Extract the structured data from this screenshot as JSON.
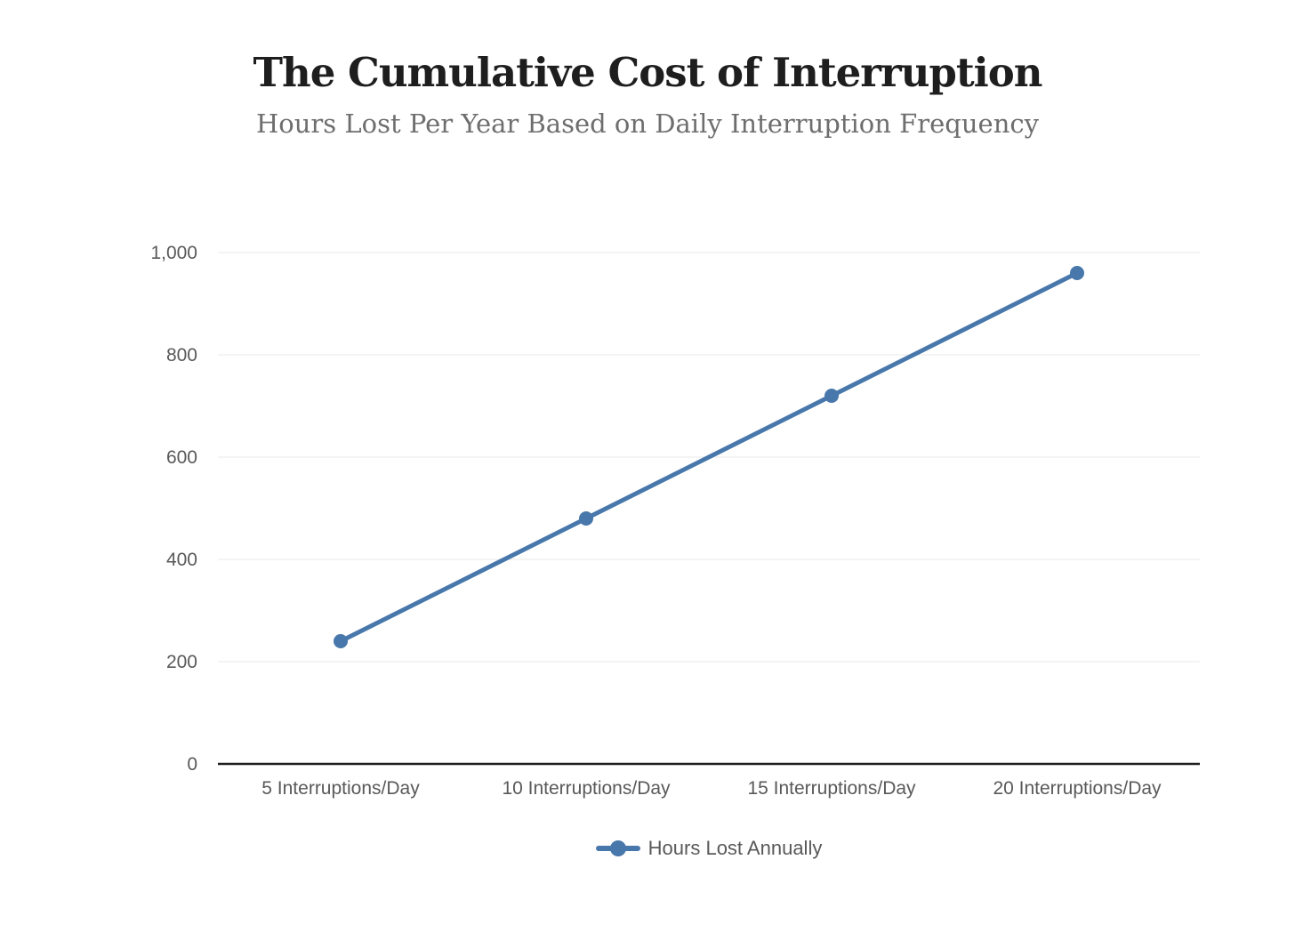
{
  "header": {
    "title": "The Cumulative Cost of Interruption",
    "subtitle": "Hours Lost Per Year Based on Daily Interruption Frequency"
  },
  "chart_data": {
    "type": "line",
    "title": "The Cumulative Cost of Interruption",
    "subtitle": "Hours Lost Per Year Based on Daily Interruption Frequency",
    "categories": [
      "5 Interruptions/Day",
      "10 Interruptions/Day",
      "15 Interruptions/Day",
      "20 Interruptions/Day"
    ],
    "series": [
      {
        "name": "Hours Lost Annually",
        "values": [
          240,
          480,
          720,
          960
        ]
      }
    ],
    "xlabel": "",
    "ylabel": "",
    "ylim": [
      0,
      1000
    ],
    "yticks": [
      0,
      200,
      400,
      600,
      800,
      1000
    ],
    "ytick_labels": [
      "0",
      "200",
      "400",
      "600",
      "800",
      "1,000"
    ],
    "grid": "horizontal",
    "legend_position": "bottom",
    "colors": {
      "line": "#4878ab",
      "marker": "#4878ab",
      "grid": "#e8e8e8",
      "axis": "#1f1f1f",
      "tick_text": "#595959",
      "title_text": "#1e1e1e",
      "subtitle_text": "#6e6e6e",
      "background": "#ffffff"
    }
  }
}
